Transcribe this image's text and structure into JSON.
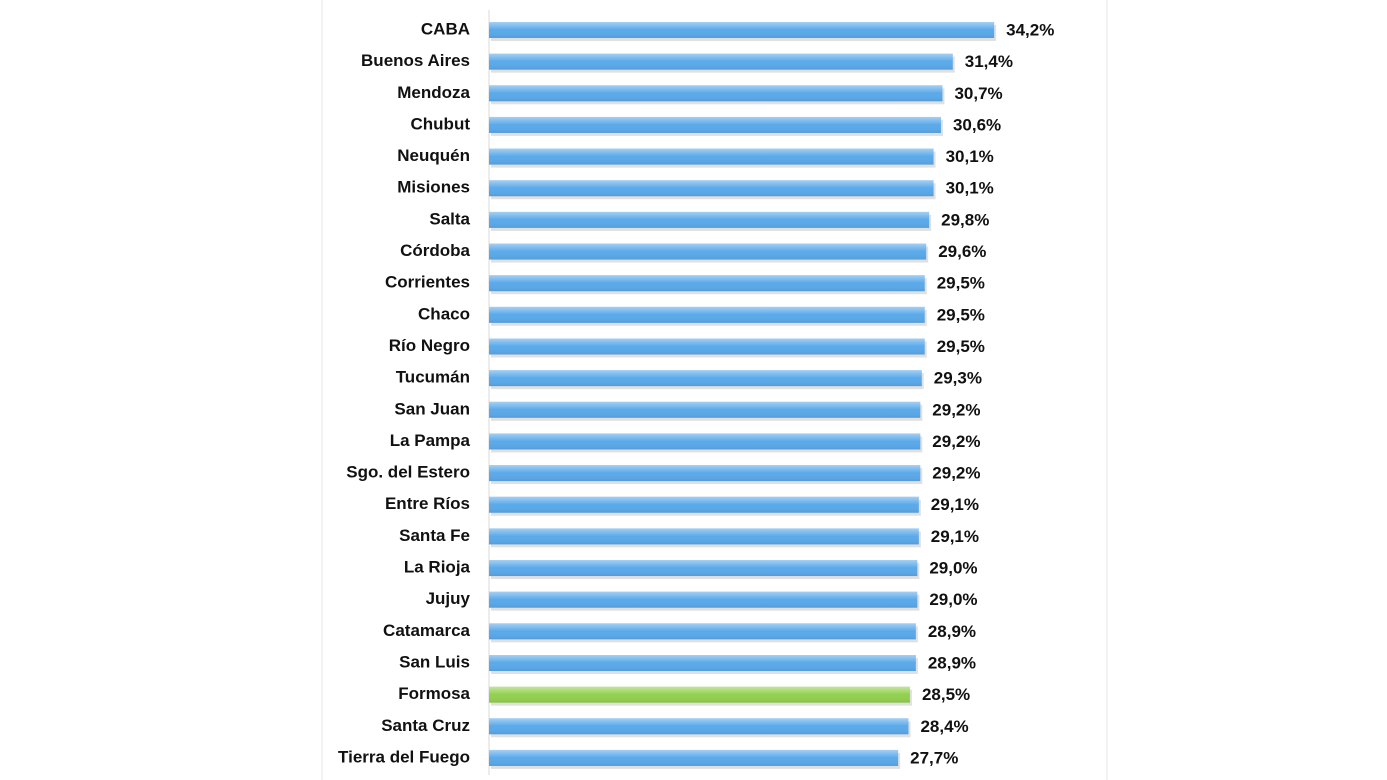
{
  "chart_data": {
    "type": "hbar",
    "categories": [
      "CABA",
      "Buenos Aires",
      "Mendoza",
      "Chubut",
      "Neuquén",
      "Misiones",
      "Salta",
      "Córdoba",
      "Corrientes",
      "Chaco",
      "Río Negro",
      "Tucumán",
      "San Juan",
      "La Pampa",
      "Sgo. del Estero",
      "Entre Ríos",
      "Santa Fe",
      "La Rioja",
      "Jujuy",
      "Catamarca",
      "San Luis",
      "Formosa",
      "Santa Cruz",
      "Tierra del Fuego"
    ],
    "values": [
      34.2,
      31.4,
      30.7,
      30.6,
      30.1,
      30.1,
      29.8,
      29.6,
      29.5,
      29.5,
      29.5,
      29.3,
      29.2,
      29.2,
      29.2,
      29.1,
      29.1,
      29.0,
      29.0,
      28.9,
      28.9,
      28.5,
      28.4,
      27.7
    ],
    "value_labels": [
      "34,2%",
      "31,4%",
      "30,7%",
      "30,6%",
      "30,1%",
      "30,1%",
      "29,8%",
      "29,6%",
      "29,5%",
      "29,5%",
      "29,5%",
      "29,3%",
      "29,2%",
      "29,2%",
      "29,2%",
      "29,1%",
      "29,1%",
      "29,0%",
      "29,0%",
      "28,9%",
      "28,9%",
      "28,5%",
      "28,4%",
      "27,7%"
    ],
    "colors": [
      "#5aa9ea",
      "#5aa9ea",
      "#5aa9ea",
      "#5aa9ea",
      "#5aa9ea",
      "#5aa9ea",
      "#5aa9ea",
      "#5aa9ea",
      "#5aa9ea",
      "#5aa9ea",
      "#5aa9ea",
      "#5aa9ea",
      "#5aa9ea",
      "#5aa9ea",
      "#5aa9ea",
      "#5aa9ea",
      "#5aa9ea",
      "#5aa9ea",
      "#5aa9ea",
      "#5aa9ea",
      "#5aa9ea",
      "#92d050",
      "#5aa9ea",
      "#5aa9ea"
    ]
  }
}
